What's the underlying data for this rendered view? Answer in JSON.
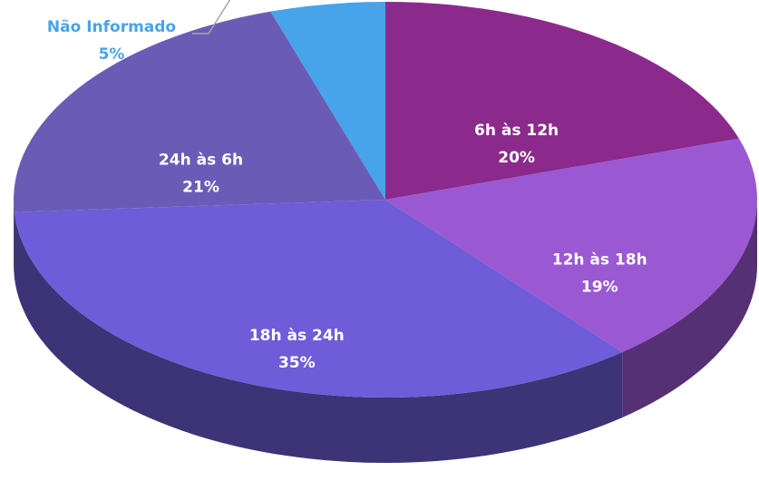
{
  "chart_data": {
    "type": "pie",
    "categories": [
      "6h às 12h",
      "12h às 18h",
      "18h às 24h",
      "24h às 6h",
      "Não Informado"
    ],
    "values": [
      20,
      19,
      35,
      21,
      5
    ],
    "value_labels": [
      "20%",
      "19%",
      "35%",
      "21%",
      "5%"
    ],
    "colors": [
      "#8b2a8c",
      "#9a58d2",
      "#6f5cd8",
      "#6a5cb6",
      "#47a3ea"
    ]
  }
}
